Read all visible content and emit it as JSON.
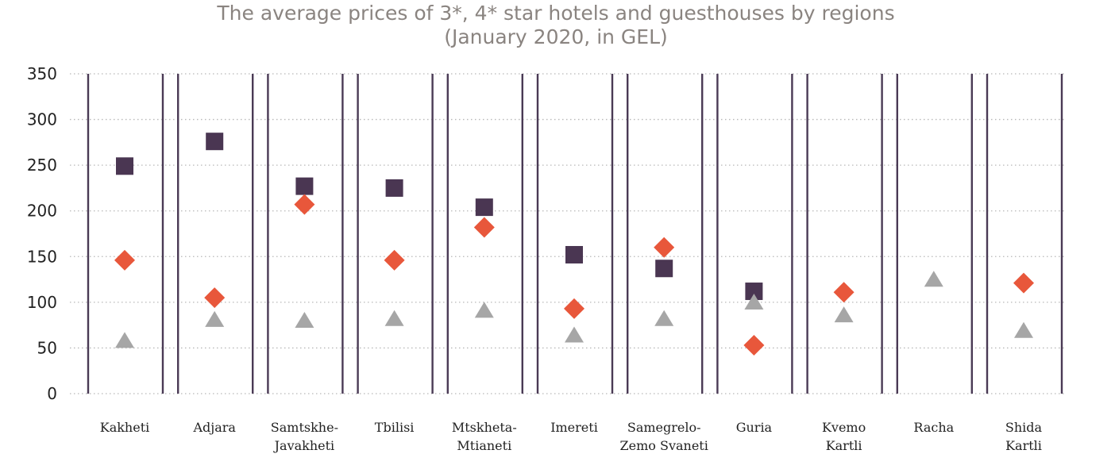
{
  "chart_data": {
    "type": "scatter",
    "title": [
      "The average prices of 3*, 4* star hotels and guesthouses by regions",
      "(January 2020, in GEL)"
    ],
    "ylim": [
      0,
      350
    ],
    "yticks": [
      0,
      50,
      100,
      150,
      200,
      250,
      300,
      350
    ],
    "grid": true,
    "categories": [
      [
        "Kakheti"
      ],
      [
        "Adjara"
      ],
      [
        "Samtskhe-",
        "Javakheti"
      ],
      [
        "Tbilisi"
      ],
      [
        "Mtskheta-",
        "Mtianeti"
      ],
      [
        "Imereti"
      ],
      [
        "Samegrelo-",
        "Zemo Svaneti"
      ],
      [
        "Guria"
      ],
      [
        "Kvemo",
        "Kartli"
      ],
      [
        "Racha"
      ],
      [
        "Shida",
        "Kartli"
      ]
    ],
    "series": [
      {
        "marker": "square",
        "color": "#4a3652",
        "values": [
          249,
          276,
          227,
          225,
          204,
          152,
          137,
          112,
          null,
          null,
          null
        ]
      },
      {
        "marker": "diamond",
        "color": "#e8573b",
        "values": [
          146,
          105,
          207,
          146,
          182,
          93,
          160,
          53,
          111,
          null,
          121
        ]
      },
      {
        "marker": "triangle",
        "color": "#a6a6a6",
        "values": [
          57,
          80,
          79,
          81,
          90,
          63,
          81,
          99,
          85,
          124,
          68
        ]
      }
    ]
  }
}
